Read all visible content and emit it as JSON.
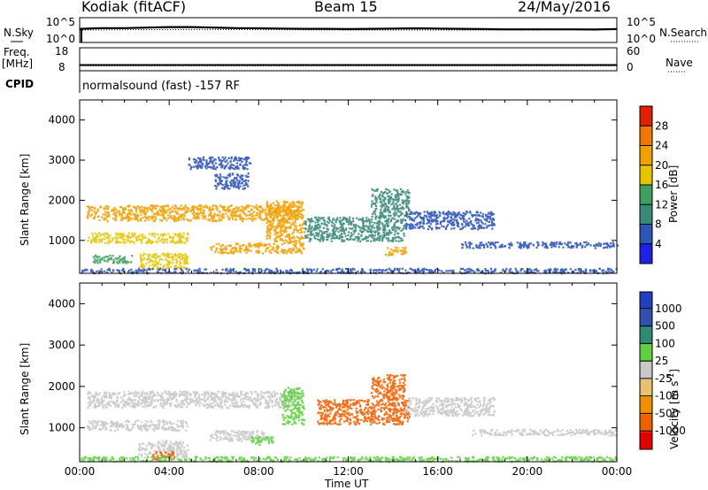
{
  "header": {
    "station": "Kodiak (fitACF)",
    "beam": "Beam 15",
    "date": "24/May/2016"
  },
  "left_labels": {
    "nsky": "N.Sky",
    "freq": "Freq.",
    "mhz": "[MHz]",
    "cpid": "CPID"
  },
  "right_labels": {
    "nsearch": "N.Search",
    "nave": "Nave"
  },
  "cpid_text": "normalsound (fast) -157 RF",
  "colors": {
    "power": [
      "#2020e6",
      "#2e55b8",
      "#3a8a7a",
      "#3ea060",
      "#e6c400",
      "#f2a000",
      "#f07800",
      "#e02000"
    ],
    "velocity": [
      "#e00000",
      "#f06000",
      "#f09000",
      "#e8c070",
      "#c8c8c8",
      "#60d040",
      "#2e8a70",
      "#3050b0",
      "#2040c0"
    ],
    "axis": "#000000"
  },
  "chart_data": [
    {
      "type": "line",
      "panel": "noise",
      "left_ticks": [
        "10^5",
        "10^0"
      ],
      "right_ticks": [
        "10^5",
        "10^0"
      ],
      "x_range": [
        "00:00",
        "00:00"
      ],
      "series": [
        {
          "name": "N.Sky",
          "style": "solid",
          "x": [
            0,
            1,
            2,
            3,
            4,
            5,
            6,
            7,
            8,
            9,
            10,
            11,
            12,
            13,
            14,
            15,
            16,
            17,
            18,
            19,
            20,
            21,
            22,
            23,
            24
          ],
          "y": [
            0.55,
            0.58,
            0.58,
            0.6,
            0.62,
            0.62,
            0.6,
            0.58,
            0.57,
            0.56,
            0.55,
            0.55,
            0.54,
            0.55,
            0.56,
            0.57,
            0.56,
            0.55,
            0.54,
            0.53,
            0.53,
            0.53,
            0.53,
            0.52,
            0.54
          ]
        },
        {
          "name": "N.Search",
          "style": "dotted",
          "x": [
            0,
            4,
            8,
            12,
            16,
            20,
            24
          ],
          "y": [
            0.5,
            0.52,
            0.52,
            0.5,
            0.5,
            0.5,
            0.52
          ]
        }
      ]
    },
    {
      "type": "line",
      "panel": "frequency",
      "left_ticks": [
        "18",
        "8"
      ],
      "right_ticks": [
        "60",
        "0"
      ],
      "series": [
        {
          "name": "Freq.",
          "style": "solid",
          "x": [
            0,
            24
          ],
          "y": [
            10.5,
            10.5
          ]
        },
        {
          "name": "Nave",
          "style": "dotted",
          "x": [
            0,
            24
          ],
          "y": [
            11,
            11
          ]
        }
      ]
    },
    {
      "type": "heatmap",
      "panel": "power",
      "xlabel": "",
      "ylabel": "Slant Range [km]",
      "yticks": [
        1000,
        2000,
        3000,
        4000
      ],
      "ylim": [
        180,
        4500
      ],
      "xlim": [
        0,
        24
      ],
      "colorbar_label": "Power [dB]",
      "colorbar_ticks": [
        4,
        8,
        12,
        16,
        20,
        24,
        28
      ],
      "regions": [
        {
          "t0": 0.3,
          "t1": 9.7,
          "r0": 1500,
          "r1": 1900,
          "level": 20
        },
        {
          "t0": 0.3,
          "t1": 4.8,
          "r0": 950,
          "r1": 1200,
          "level": 16
        },
        {
          "t0": 0.5,
          "t1": 2.3,
          "r0": 450,
          "r1": 650,
          "level": 12
        },
        {
          "t0": 2.6,
          "t1": 4.8,
          "r0": 300,
          "r1": 700,
          "level": 18
        },
        {
          "t0": 5.8,
          "t1": 8.3,
          "r0": 700,
          "r1": 950,
          "level": 22
        },
        {
          "t0": 8.3,
          "t1": 10.0,
          "r0": 700,
          "r1": 2000,
          "level": 20
        },
        {
          "t0": 4.8,
          "t1": 7.6,
          "r0": 2800,
          "r1": 3100,
          "level": 6
        },
        {
          "t0": 6.0,
          "t1": 7.5,
          "r0": 2300,
          "r1": 2700,
          "level": 6
        },
        {
          "t0": 10.0,
          "t1": 14.5,
          "r0": 1000,
          "r1": 1600,
          "level": 8
        },
        {
          "t0": 13.0,
          "t1": 14.7,
          "r0": 1600,
          "r1": 2300,
          "level": 8
        },
        {
          "t0": 13.6,
          "t1": 14.6,
          "r0": 650,
          "r1": 850,
          "level": 20
        },
        {
          "t0": 14.5,
          "t1": 18.5,
          "r0": 1300,
          "r1": 1750,
          "level": 6
        },
        {
          "t0": 17.0,
          "t1": 24.0,
          "r0": 830,
          "r1": 980,
          "level": 6
        },
        {
          "t0": 0.0,
          "t1": 24.0,
          "r0": 200,
          "r1": 320,
          "level": 6
        }
      ]
    },
    {
      "type": "heatmap",
      "panel": "velocity",
      "xlabel": "Time UT",
      "ylabel": "Slant Range [km]",
      "xticks": [
        "00:00",
        "04:00",
        "08:00",
        "12:00",
        "16:00",
        "20:00",
        "00:00"
      ],
      "yticks": [
        1000,
        2000,
        3000,
        4000
      ],
      "ylim": [
        180,
        4500
      ],
      "xlim": [
        0,
        24
      ],
      "colorbar_label": "Velocity [m s",
      "colorbar_label_exponent": "-1",
      "colorbar_ticks": [
        "1000",
        "500",
        "100",
        "25",
        "-25",
        "-100",
        "-500",
        "-1000"
      ],
      "regions": [
        {
          "t0": 0.3,
          "t1": 9.7,
          "r0": 1500,
          "r1": 1900,
          "level": 0
        },
        {
          "t0": 0.3,
          "t1": 4.8,
          "r0": 950,
          "r1": 1200,
          "level": 0
        },
        {
          "t0": 2.6,
          "t1": 4.8,
          "r0": 300,
          "r1": 700,
          "level": 0
        },
        {
          "t0": 3.2,
          "t1": 4.2,
          "r0": 250,
          "r1": 450,
          "level": -150
        },
        {
          "t0": 5.8,
          "t1": 8.3,
          "r0": 700,
          "r1": 950,
          "level": 0
        },
        {
          "t0": 7.6,
          "t1": 8.6,
          "r0": 600,
          "r1": 800,
          "level": 80
        },
        {
          "t0": 9.0,
          "t1": 10.0,
          "r0": 1100,
          "r1": 2000,
          "level": 80
        },
        {
          "t0": 10.6,
          "t1": 14.7,
          "r0": 1100,
          "r1": 1700,
          "level": -150
        },
        {
          "t0": 13.0,
          "t1": 14.5,
          "r0": 1700,
          "r1": 2300,
          "level": -150
        },
        {
          "t0": 14.5,
          "t1": 18.5,
          "r0": 1300,
          "r1": 1750,
          "level": 0
        },
        {
          "t0": 17.5,
          "t1": 24.0,
          "r0": 830,
          "r1": 980,
          "level": 0
        },
        {
          "t0": 0.0,
          "t1": 24.0,
          "r0": 200,
          "r1": 320,
          "level": 60
        }
      ]
    }
  ]
}
